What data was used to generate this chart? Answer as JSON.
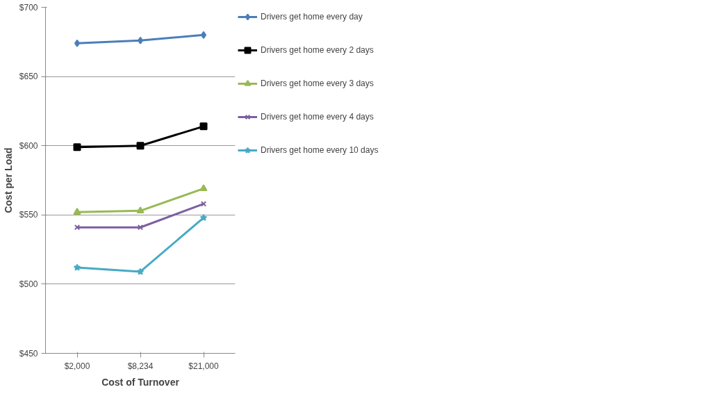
{
  "chart_data": {
    "type": "line",
    "xlabel": "Cost of Turnover",
    "ylabel": "Cost per Load",
    "categories": [
      "$2,000",
      "$8,234",
      "$21,000"
    ],
    "ylim": [
      450,
      700
    ],
    "yticks": [
      {
        "value": 450,
        "label": "$450"
      },
      {
        "value": 500,
        "label": "$500"
      },
      {
        "value": 550,
        "label": "$550"
      },
      {
        "value": 600,
        "label": "$600"
      },
      {
        "value": 650,
        "label": "$650"
      },
      {
        "value": 700,
        "label": "$700"
      }
    ],
    "grid": "y",
    "legend": "right",
    "line_style": "solid",
    "series": [
      {
        "name": "Drivers get home every day",
        "color": "#4a7ebb",
        "marker": "diamond",
        "values": [
          674,
          676,
          680
        ]
      },
      {
        "name": "Drivers get home every 2 days",
        "color": "#000000",
        "marker": "square",
        "values": [
          599,
          600,
          614
        ]
      },
      {
        "name": "Drivers get home every 3 days",
        "color": "#98b954",
        "marker": "triangle",
        "values": [
          552,
          553,
          569
        ]
      },
      {
        "name": "Drivers get home every 4 days",
        "color": "#7d5fa0",
        "marker": "cross",
        "values": [
          541,
          541,
          558
        ]
      },
      {
        "name": "Drivers get home every 10 days",
        "color": "#46aac5",
        "marker": "star",
        "values": [
          512,
          509,
          548
        ]
      }
    ]
  }
}
